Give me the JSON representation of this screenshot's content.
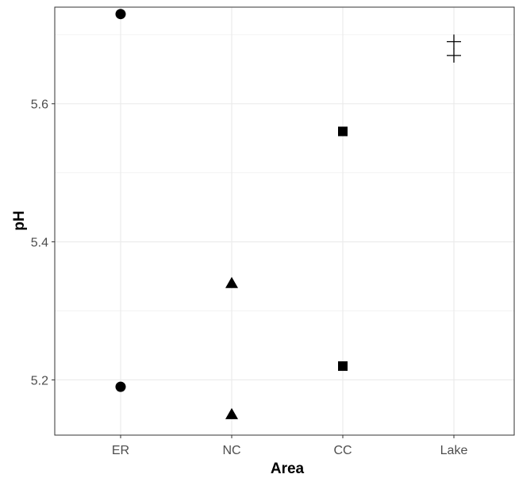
{
  "chart_data": {
    "type": "scatter",
    "title": "",
    "xlabel": "Area",
    "ylabel": "pH",
    "categories": [
      "ER",
      "NC",
      "CC",
      "Lake"
    ],
    "ylim": [
      5.12,
      5.74
    ],
    "yticks": [
      5.2,
      5.4,
      5.6
    ],
    "ytick_labels": [
      "5.2",
      "5.4",
      "5.6"
    ],
    "grid": true,
    "legend": "none",
    "series": [
      {
        "category": "ER",
        "shape": "circle",
        "values": [
          5.73,
          5.19
        ]
      },
      {
        "category": "NC",
        "shape": "triangle",
        "values": [
          5.34,
          5.15
        ]
      },
      {
        "category": "CC",
        "shape": "square",
        "values": [
          5.56,
          5.22
        ]
      },
      {
        "category": "Lake",
        "shape": "cross",
        "values": [
          5.69,
          5.67
        ]
      }
    ],
    "colors": {
      "points": "#000000",
      "grid": "#ebebeb",
      "panel_border": "#333333"
    }
  }
}
